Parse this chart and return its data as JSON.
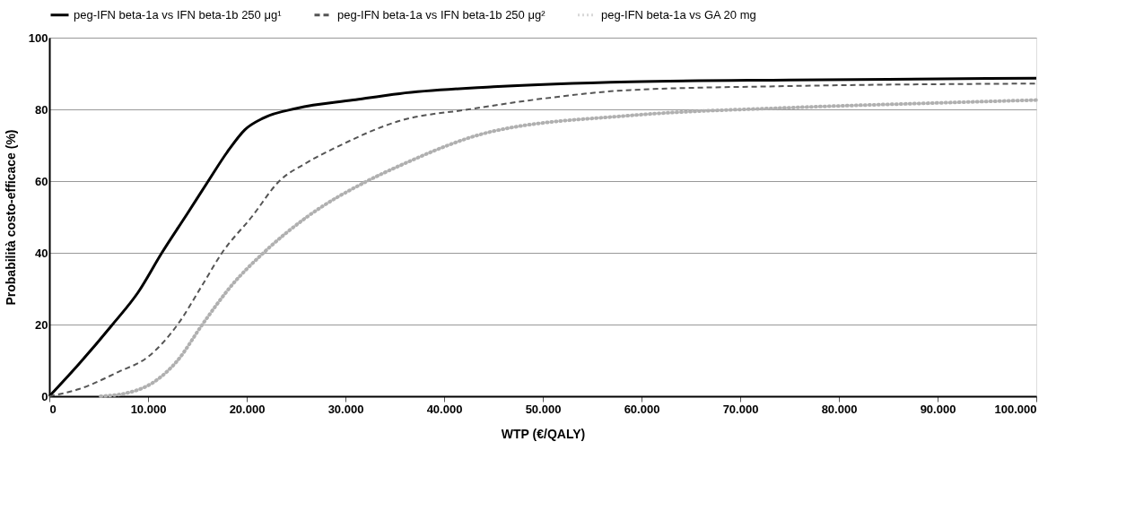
{
  "chart_data": {
    "type": "line",
    "xlabel": "WTP (€/QALY)",
    "ylabel": "Probabilità costo-efficace (%)",
    "xlim": [
      0,
      100000
    ],
    "ylim": [
      0,
      100
    ],
    "xticks": [
      {
        "value": 0,
        "label": "0"
      },
      {
        "value": 10000,
        "label": "10.000"
      },
      {
        "value": 20000,
        "label": "20.000"
      },
      {
        "value": 30000,
        "label": "30.000"
      },
      {
        "value": 40000,
        "label": "40.000"
      },
      {
        "value": 50000,
        "label": "50.000"
      },
      {
        "value": 60000,
        "label": "60.000"
      },
      {
        "value": 70000,
        "label": "70.000"
      },
      {
        "value": 80000,
        "label": "80.000"
      },
      {
        "value": 90000,
        "label": "90.000"
      },
      {
        "value": 100000,
        "label": "100.000"
      }
    ],
    "yticks": [
      0,
      20,
      40,
      60,
      80,
      100
    ],
    "grid": "y",
    "legend": "top",
    "marker": "none",
    "series": [
      {
        "name": "peg-IFN beta-1a vs IFN beta-1b 250 μg¹",
        "color": "#000000",
        "line_style": "solid",
        "x": [
          0,
          3000,
          6400,
          9000,
          11400,
          14000,
          16100,
          18000,
          19800,
          21700,
          25100,
          30800,
          35500,
          45000,
          58900,
          75000,
          90000,
          100000
        ],
        "values": [
          0,
          9,
          20,
          29,
          40,
          51,
          60,
          68,
          74.3,
          77.6,
          80.3,
          82.6,
          84.4,
          86.3,
          87.7,
          88.2,
          88.5,
          88.7
        ]
      },
      {
        "name": "peg-IFN beta-1a vs IFN beta-1b 250 μg²",
        "color": "#555555",
        "line_style": "dashed",
        "x": [
          0,
          3000,
          7000,
          10000,
          13000,
          15500,
          17500,
          20500,
          23300,
          26000,
          29200,
          35500,
          42500,
          50000,
          58900,
          75000,
          100000
        ],
        "values": [
          0,
          2,
          6.8,
          11,
          20,
          31,
          40,
          50,
          60,
          65,
          69.6,
          76.8,
          80,
          83,
          85.4,
          86.5,
          87.2
        ]
      },
      {
        "name": "peg-IFN beta-1a vs GA 20 mg",
        "color": "#b0b0b0",
        "line_style": "dotted",
        "x": [
          5200,
          8000,
          10500,
          13000,
          15500,
          18500,
          21700,
          26100,
          32200,
          35500,
          44800,
          58900,
          75300,
          90000,
          100000
        ],
        "values": [
          0,
          1,
          3.8,
          10,
          20,
          31,
          40,
          50,
          60,
          64.3,
          73.8,
          78.3,
          80.5,
          81.8,
          82.6
        ]
      }
    ]
  }
}
